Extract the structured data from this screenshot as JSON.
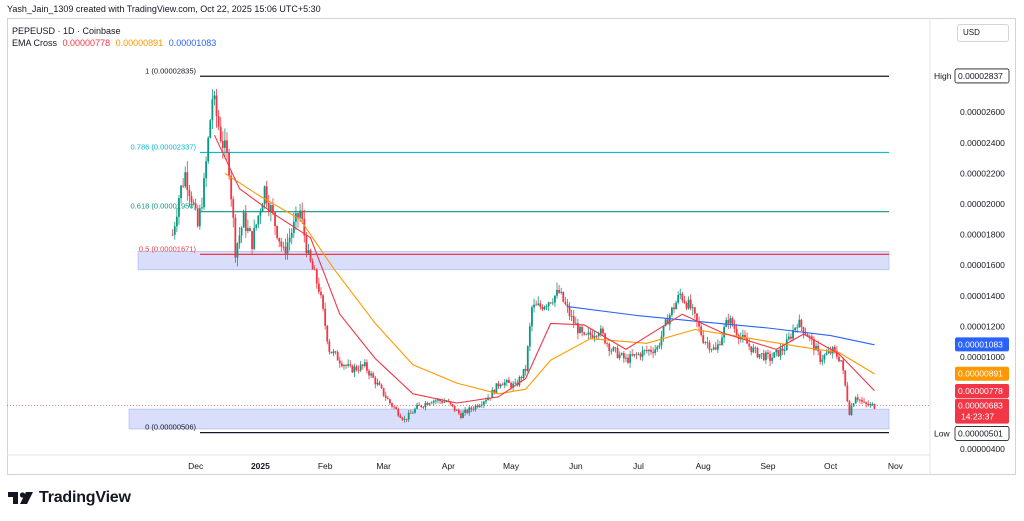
{
  "header": {
    "attribution": "Yash_Jain_1309 created with TradingView.com, Oct 22, 2025 15:06 UTC+5:30"
  },
  "legend": {
    "symbol_line": "PEPEUSD · 1D · Coinbase",
    "ema_label": "EMA Cross",
    "ema_fast": "0.00000778",
    "ema_slow": "0.00000891",
    "ema_long": "0.00001083"
  },
  "currency_button": "USD",
  "brand": {
    "name": "TradingView"
  },
  "colors": {
    "ema_fast": "#f23645",
    "ema_slow": "#ff9800",
    "ema_long": "#2962ff",
    "up": "#089981",
    "down": "#f23645",
    "zone": "#c5cef8",
    "fib_0786": "#00bcd4",
    "fib_0618": "#089981",
    "fib_05": "#f23645"
  },
  "chart_data": {
    "type": "candlestick",
    "timeframe": "1D",
    "x_tick_labels": [
      "Dec",
      "2025",
      "Feb",
      "Mar",
      "Apr",
      "May",
      "Jun",
      "Jul",
      "Aug",
      "Sep",
      "Oct",
      "Nov"
    ],
    "y_tick_labels": [
      "0.00002600",
      "0.00002400",
      "0.00002200",
      "0.00002000",
      "0.00001800",
      "0.00001600",
      "0.00001400",
      "0.00001200",
      "0.00001000",
      "0.00000400"
    ],
    "y_ticks": [
      2.6e-05,
      2.4e-05,
      2.2e-05,
      2e-05,
      1.8e-05,
      1.6e-05,
      1.4e-05,
      1.2e-05,
      1e-05,
      4e-06
    ],
    "ylim": [
      3.6e-06,
      3e-05
    ],
    "high": {
      "label": "High",
      "value": "0.00002837"
    },
    "low": {
      "label": "Low",
      "value": "0.00000501"
    },
    "last_price": {
      "value": "0.00000683",
      "countdown": "14:23:37"
    },
    "price_tags": [
      {
        "value": "0.00001083",
        "color": "#2962ff"
      },
      {
        "value": "0.00000891",
        "color": "#ff9800"
      },
      {
        "value": "0.00000778",
        "color": "#f23645"
      }
    ],
    "fibonacci": [
      {
        "label": "1 (0.00002835)",
        "value": 2.835e-05,
        "color": "#131722"
      },
      {
        "label": "0.786 (0.00002337)",
        "value": 2.337e-05,
        "color": "#00bcd4"
      },
      {
        "label": "0.618 (0.00001950)",
        "value": 1.95e-05,
        "color": "#089981"
      },
      {
        "label": "0.5 (0.00001671)",
        "value": 1.671e-05,
        "color": "#f23645"
      },
      {
        "label": "0 (0.00000506)",
        "value": 5.06e-06,
        "color": "#131722"
      }
    ],
    "zones": [
      {
        "from": 1.57e-05,
        "to": 1.69e-05
      },
      {
        "from": 5.3e-06,
        "to": 6.6e-06
      }
    ],
    "close_path": [
      [
        "2024-11-20",
        1.8e-05
      ],
      [
        "2024-11-23",
        2.05e-05
      ],
      [
        "2024-11-26",
        2.2e-05
      ],
      [
        "2024-11-29",
        2.05e-05
      ],
      [
        "2024-12-02",
        1.85e-05
      ],
      [
        "2024-12-05",
        2.12e-05
      ],
      [
        "2024-12-09",
        2.7e-05
      ],
      [
        "2024-12-13",
        2.45e-05
      ],
      [
        "2024-12-17",
        2.25e-05
      ],
      [
        "2024-12-20",
        1.7e-05
      ],
      [
        "2024-12-24",
        1.9e-05
      ],
      [
        "2024-12-28",
        1.75e-05
      ],
      [
        "2025-01-03",
        2.1e-05
      ],
      [
        "2025-01-07",
        1.92e-05
      ],
      [
        "2025-01-12",
        1.68e-05
      ],
      [
        "2025-01-16",
        1.82e-05
      ],
      [
        "2025-01-20",
        1.95e-05
      ],
      [
        "2025-01-24",
        1.65e-05
      ],
      [
        "2025-01-29",
        1.45e-05
      ],
      [
        "2025-02-03",
        1.05e-05
      ],
      [
        "2025-02-08",
        9.8e-06
      ],
      [
        "2025-02-13",
        9.2e-06
      ],
      [
        "2025-02-20",
        9.4e-06
      ],
      [
        "2025-02-26",
        8.2e-06
      ],
      [
        "2025-03-04",
        7e-06
      ],
      [
        "2025-03-11",
        5.9e-06
      ],
      [
        "2025-03-17",
        6.7e-06
      ],
      [
        "2025-03-24",
        7.2e-06
      ],
      [
        "2025-03-31",
        7.1e-06
      ],
      [
        "2025-04-07",
        6.2e-06
      ],
      [
        "2025-04-14",
        6.8e-06
      ],
      [
        "2025-04-21",
        7.5e-06
      ],
      [
        "2025-04-26",
        8.4e-06
      ],
      [
        "2025-05-03",
        8.1e-06
      ],
      [
        "2025-05-08",
        9.2e-06
      ],
      [
        "2025-05-11",
        1.32e-05
      ],
      [
        "2025-05-15",
        1.33e-05
      ],
      [
        "2025-05-20",
        1.38e-05
      ],
      [
        "2025-05-24",
        1.42e-05
      ],
      [
        "2025-05-30",
        1.25e-05
      ],
      [
        "2025-06-05",
        1.12e-05
      ],
      [
        "2025-06-12",
        1.18e-05
      ],
      [
        "2025-06-18",
        1.05e-05
      ],
      [
        "2025-06-25",
        9.8e-06
      ],
      [
        "2025-07-03",
        1.03e-05
      ],
      [
        "2025-07-10",
        1.06e-05
      ],
      [
        "2025-07-15",
        1.25e-05
      ],
      [
        "2025-07-21",
        1.41e-05
      ],
      [
        "2025-07-26",
        1.32e-05
      ],
      [
        "2025-08-01",
        1.12e-05
      ],
      [
        "2025-08-07",
        1.04e-05
      ],
      [
        "2025-08-13",
        1.25e-05
      ],
      [
        "2025-08-19",
        1.13e-05
      ],
      [
        "2025-08-26",
        1.03e-05
      ],
      [
        "2025-09-02",
        9.9e-06
      ],
      [
        "2025-09-09",
        1.06e-05
      ],
      [
        "2025-09-15",
        1.23e-05
      ],
      [
        "2025-09-20",
        1.15e-05
      ],
      [
        "2025-09-26",
        9.9e-06
      ],
      [
        "2025-10-02",
        1.04e-05
      ],
      [
        "2025-10-06",
        9.8e-06
      ],
      [
        "2025-10-10",
        6.4e-06
      ],
      [
        "2025-10-13",
        7.5e-06
      ],
      [
        "2025-10-17",
        6.9e-06
      ],
      [
        "2025-10-22",
        6.8e-06
      ]
    ],
    "ema_series": {
      "long": [
        [
          "2025-05-28",
          1.33e-05
        ],
        [
          "2025-07-01",
          1.27e-05
        ],
        [
          "2025-08-01",
          1.23e-05
        ],
        [
          "2025-09-01",
          1.19e-05
        ],
        [
          "2025-10-01",
          1.14e-05
        ],
        [
          "2025-10-22",
          1.08e-05
        ]
      ],
      "slow": [
        [
          "2024-12-15",
          2.2e-05
        ],
        [
          "2025-01-01",
          2.05e-05
        ],
        [
          "2025-01-20",
          1.9e-05
        ],
        [
          "2025-02-05",
          1.58e-05
        ],
        [
          "2025-02-25",
          1.22e-05
        ],
        [
          "2025-03-15",
          9.5e-06
        ],
        [
          "2025-04-05",
          8.3e-06
        ],
        [
          "2025-04-25",
          7.6e-06
        ],
        [
          "2025-05-08",
          7.9e-06
        ],
        [
          "2025-05-20",
          9.8e-06
        ],
        [
          "2025-06-08",
          1.12e-05
        ],
        [
          "2025-07-05",
          1.09e-05
        ],
        [
          "2025-07-28",
          1.18e-05
        ],
        [
          "2025-08-20",
          1.13e-05
        ],
        [
          "2025-09-15",
          1.07e-05
        ],
        [
          "2025-10-05",
          1.03e-05
        ],
        [
          "2025-10-22",
          8.9e-06
        ]
      ],
      "fast": [
        [
          "2024-12-10",
          2.45e-05
        ],
        [
          "2024-12-22",
          2.1e-05
        ],
        [
          "2025-01-08",
          1.93e-05
        ],
        [
          "2025-01-25",
          1.78e-05
        ],
        [
          "2025-02-08",
          1.28e-05
        ],
        [
          "2025-02-25",
          9.9e-06
        ],
        [
          "2025-03-15",
          7.6e-06
        ],
        [
          "2025-04-05",
          7e-06
        ],
        [
          "2025-04-25",
          7.4e-06
        ],
        [
          "2025-05-08",
          8.6e-06
        ],
        [
          "2025-05-20",
          1.22e-05
        ],
        [
          "2025-06-05",
          1.21e-05
        ],
        [
          "2025-06-25",
          1.05e-05
        ],
        [
          "2025-07-22",
          1.28e-05
        ],
        [
          "2025-08-10",
          1.16e-05
        ],
        [
          "2025-09-05",
          1.05e-05
        ],
        [
          "2025-09-18",
          1.15e-05
        ],
        [
          "2025-10-05",
          1.02e-05
        ],
        [
          "2025-10-22",
          7.8e-06
        ]
      ]
    }
  }
}
